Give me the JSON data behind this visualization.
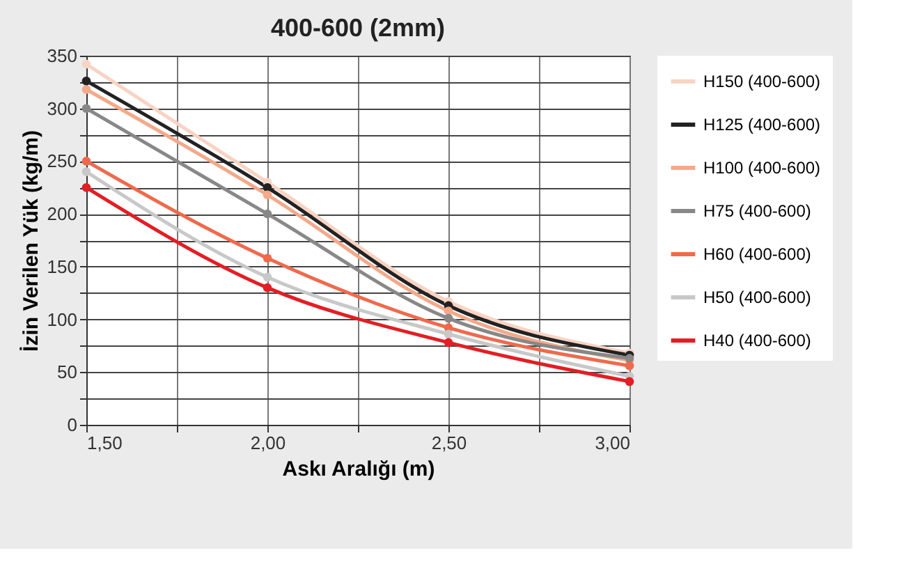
{
  "chart_data": {
    "type": "line",
    "title": "400-600 (2mm)",
    "xlabel": "Askı Aralığı (m)",
    "ylabel": "İzin Verilen Yük (kg/m)",
    "x": [
      1.5,
      2.0,
      2.5,
      3.0
    ],
    "series": [
      {
        "name": "H150 (400-600)",
        "color": "#f9d3c3",
        "values": [
          342,
          230,
          117,
          68
        ]
      },
      {
        "name": "H125 (400-600)",
        "color": "#222222",
        "values": [
          326,
          225,
          113,
          66
        ]
      },
      {
        "name": "H100 (400-600)",
        "color": "#f4a98a",
        "values": [
          318,
          218,
          108,
          61
        ]
      },
      {
        "name": "H75 (400-600)",
        "color": "#888888",
        "values": [
          300,
          200,
          101,
          63
        ]
      },
      {
        "name": "H60 (400-600)",
        "color": "#ef6a4c",
        "values": [
          250,
          158,
          92,
          56
        ]
      },
      {
        "name": "H50 (400-600)",
        "color": "#c8c8c8",
        "values": [
          240,
          140,
          86,
          46
        ]
      },
      {
        "name": "H40 (400-600)",
        "color": "#e31e24",
        "values": [
          225,
          130,
          78,
          41
        ]
      }
    ],
    "xlim": [
      1.5,
      3.0
    ],
    "xticks": [
      {
        "value": 1.5,
        "label": "1,50"
      },
      {
        "value": 1.75,
        "label": null
      },
      {
        "value": 2.0,
        "label": "2,00"
      },
      {
        "value": 2.25,
        "label": null
      },
      {
        "value": 2.5,
        "label": "2,50"
      },
      {
        "value": 2.75,
        "label": null
      },
      {
        "value": 3.0,
        "label": "3,00"
      }
    ],
    "ylim": [
      0,
      350
    ],
    "yticks": [
      0,
      {
        "value": 25,
        "label": null
      },
      50,
      {
        "value": 75,
        "label": null
      },
      100,
      {
        "value": 125,
        "label": null
      },
      150,
      {
        "value": 175,
        "label": null
      },
      200,
      {
        "value": 225,
        "label": null
      },
      250,
      {
        "value": 275,
        "label": null
      },
      300,
      {
        "value": 325,
        "label": null
      },
      350
    ],
    "grid": true,
    "legend": "right",
    "marker": "circle",
    "line_style": "solid"
  }
}
